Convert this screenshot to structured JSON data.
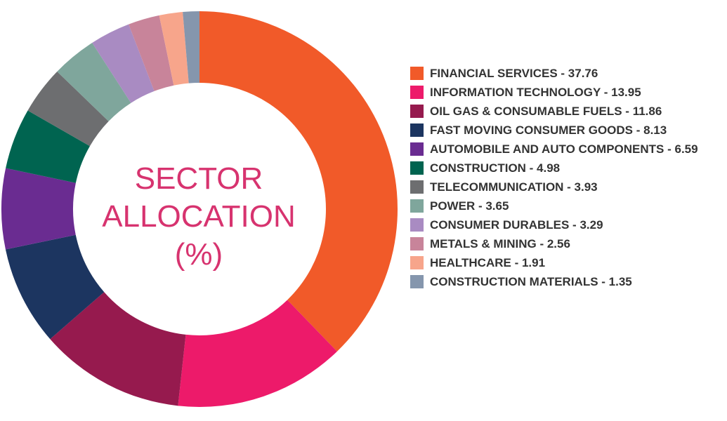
{
  "chart_data": {
    "type": "donut",
    "title": "SECTOR ALLOCATION (%)",
    "categories": [
      "FINANCIAL SERVICES - 37.76",
      "INFORMATION TECHNOLOGY - 13.95",
      "OIL GAS & CONSUMABLE FUELS - 11.86",
      "FAST MOVING CONSUMER GOODS - 8.13",
      "AUTOMOBILE AND AUTO COMPONENTS - 6.59",
      "CONSTRUCTION - 4.98",
      "TELECOMMUNICATION - 3.93",
      "POWER - 3.65",
      "CONSUMER DURABLES - 3.29",
      "METALS & MINING - 2.56",
      "HEALTHCARE - 1.91",
      "CONSTRUCTION MATERIALS - 1.35"
    ],
    "values": [
      37.76,
      13.95,
      11.86,
      8.13,
      6.59,
      4.98,
      3.93,
      3.65,
      3.29,
      2.56,
      1.91,
      1.35
    ],
    "colors": [
      "#f15a29",
      "#ed1a6a",
      "#961a4e",
      "#1c3560",
      "#6a2c91",
      "#006450",
      "#6d6e70",
      "#7fa69c",
      "#a98bc2",
      "#c8849a",
      "#f7a58b",
      "#8596ad"
    ]
  }
}
